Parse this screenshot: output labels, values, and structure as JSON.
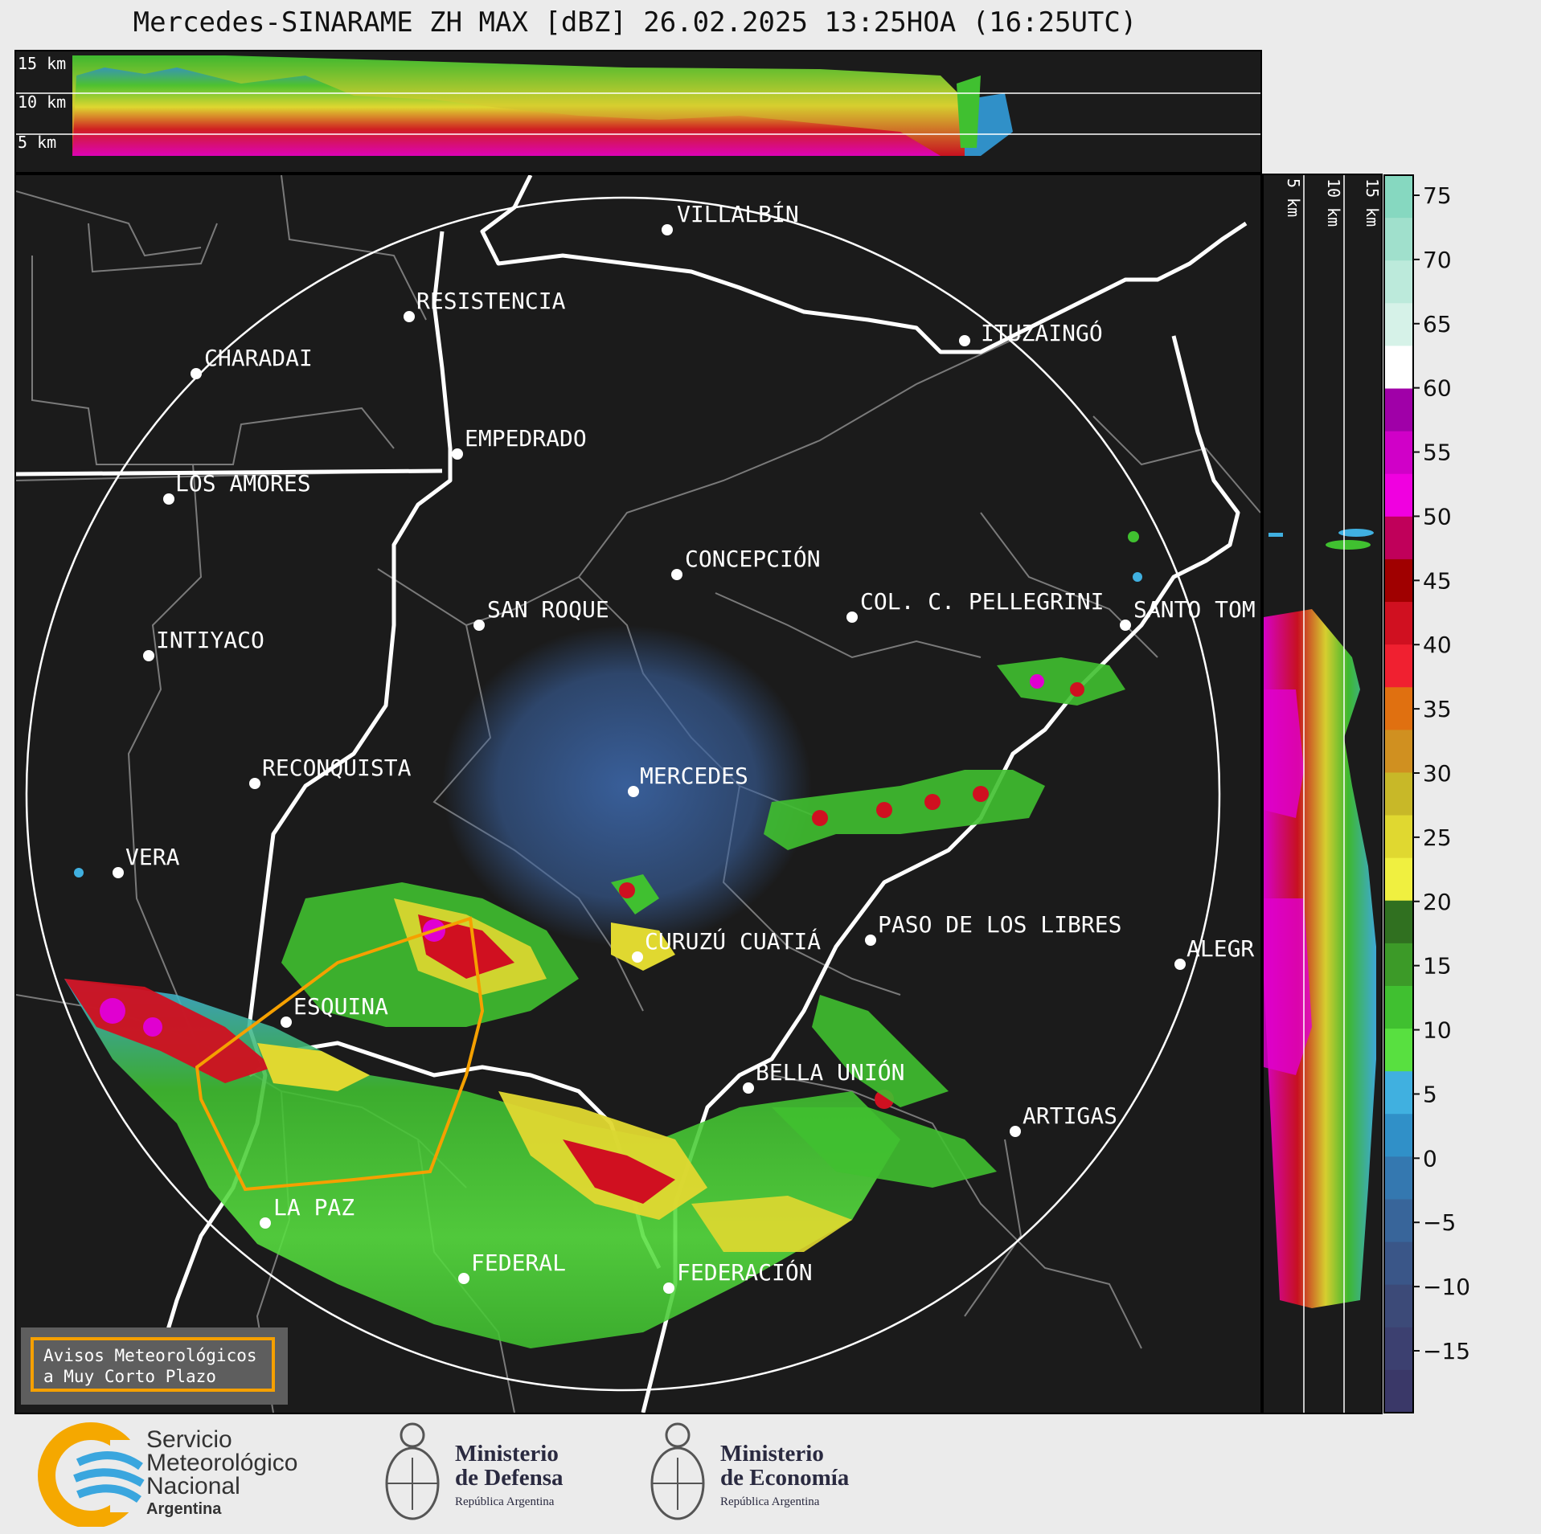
{
  "title": "Mercedes-SINARAME ZH MAX [dBZ] 26.02.2025 13:25HOA (16:25UTC)",
  "top_panel": {
    "height_labels": [
      "15 km",
      "10 km",
      "5 km"
    ]
  },
  "side_panel": {
    "height_labels": [
      "5 km",
      "10 km",
      "15 km"
    ]
  },
  "places": [
    {
      "name": "VILLALBÍN"
    },
    {
      "name": "RESISTENCIA"
    },
    {
      "name": "CHARADAI"
    },
    {
      "name": "ITUZAINGÓ"
    },
    {
      "name": "EMPEDRADO"
    },
    {
      "name": "LOS AMORES"
    },
    {
      "name": "CONCEPCIÓN"
    },
    {
      "name": "SAN ROQUE"
    },
    {
      "name": "COL. C. PELLEGRINI"
    },
    {
      "name": "SANTO TOM"
    },
    {
      "name": "INTIYACO"
    },
    {
      "name": "MERCEDES"
    },
    {
      "name": "RECONQUISTA"
    },
    {
      "name": "VERA"
    },
    {
      "name": "PASO DE LOS LIBRES"
    },
    {
      "name": "CURUZÚ CUATIÁ"
    },
    {
      "name": "ALEGR"
    },
    {
      "name": "ESQUINA"
    },
    {
      "name": "BELLA UNIÓN"
    },
    {
      "name": "ARTIGAS"
    },
    {
      "name": "LA PAZ"
    },
    {
      "name": "FEDERAL"
    },
    {
      "name": "FEDERACIÓN"
    }
  ],
  "colorbar": {
    "ticks": [
      "75",
      "70",
      "65",
      "60",
      "55",
      "50",
      "45",
      "40",
      "35",
      "30",
      "25",
      "20",
      "15",
      "10",
      "5",
      "0",
      "−5",
      "−10",
      "−15"
    ],
    "colors": [
      "#86d8c0",
      "#a0e0cc",
      "#bceadb",
      "#d6f2e8",
      "#ffffff",
      "#a000a8",
      "#d000c8",
      "#f000e0",
      "#c0005a",
      "#a00000",
      "#d01020",
      "#f02030",
      "#e07010",
      "#d09020",
      "#c8b828",
      "#e0d830",
      "#f0f040",
      "#307020",
      "#3c9a28",
      "#40c030",
      "#58e040",
      "#40b0e0",
      "#3090c8",
      "#3478b0",
      "#38659a",
      "#3a5688",
      "#3c4a78",
      "#3c4070",
      "#3a3868"
    ]
  },
  "warning": {
    "line1": "Avisos Meteorológicos",
    "line2": "a Muy Corto Plazo"
  },
  "logos": {
    "smn_line1": "Servicio",
    "smn_line2": "Meteorológico",
    "smn_line3": "Nacional",
    "smn_line4": "Argentina",
    "defensa_line1": "Ministerio",
    "defensa_line2": "de Defensa",
    "defensa_line3": "República Argentina",
    "economia_line1": "Ministerio",
    "economia_line2": "de Economía",
    "economia_line3": "República Argentina"
  }
}
